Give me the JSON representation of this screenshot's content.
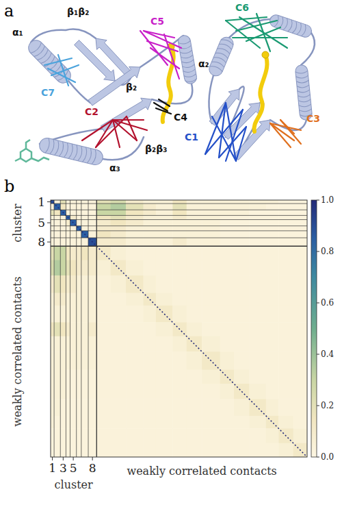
{
  "panel_a": {
    "letter": "a",
    "structure_labels": [
      "α₁",
      "β₁β₂",
      "α₂",
      "β₂",
      "β₂β₃",
      "α₃"
    ],
    "clusters": [
      {
        "label": "C1",
        "color": "#2450c8"
      },
      {
        "label": "C2",
        "color": "#b3122e"
      },
      {
        "label": "C3",
        "color": "#e0701e"
      },
      {
        "label": "C4",
        "color": "#111111"
      },
      {
        "label": "C5",
        "color": "#c81fc8"
      },
      {
        "label": "C6",
        "color": "#1a9a72"
      },
      {
        "label": "C7",
        "color": "#4aa3dc"
      }
    ]
  },
  "chart_data": {
    "type": "heatmap",
    "panel_label": "b",
    "segment_sizes": [
      5,
      9,
      8,
      6,
      9,
      7,
      10,
      12,
      20,
      22,
      25,
      18,
      24,
      20,
      22,
      26,
      20,
      22,
      24,
      18,
      21,
      20
    ],
    "group_sizes": [
      8,
      14
    ],
    "x_labels": [
      "1",
      null,
      "3",
      null,
      "5",
      null,
      null,
      "8",
      null,
      null,
      null,
      null,
      null,
      null,
      null,
      null,
      null,
      null,
      null,
      null,
      null,
      null
    ],
    "y_labels": [
      "1",
      null,
      null,
      null,
      "5",
      null,
      null,
      "8",
      null,
      null,
      null,
      null,
      null,
      null,
      null,
      null,
      null,
      null,
      null,
      null,
      null,
      null
    ],
    "x_axis_titles": [
      "cluster",
      "weakly correlated contacts"
    ],
    "y_axis_titles": [
      "cluster",
      "weakly correlated contacts"
    ],
    "values": [
      [
        0.9,
        0.04,
        0.2,
        0.04,
        0.04,
        0.04,
        0.04,
        0.04,
        0.2,
        0.25,
        0.1,
        0.05,
        0.05,
        0.15,
        0.05,
        0.05,
        0.05,
        0.05,
        0.05,
        0.05,
        0.03,
        0.03
      ],
      [
        0.04,
        0.85,
        0.15,
        0.04,
        0.04,
        0.04,
        0.04,
        0.04,
        0.3,
        0.35,
        0.2,
        0.1,
        0.05,
        0.2,
        0.05,
        0.05,
        0.05,
        0.05,
        0.05,
        0.03,
        0.03,
        0.03
      ],
      [
        0.2,
        0.15,
        0.85,
        0.04,
        0.04,
        0.04,
        0.04,
        0.04,
        0.3,
        0.3,
        0.15,
        0.1,
        0.05,
        0.15,
        0.05,
        0.05,
        0.05,
        0.05,
        0.03,
        0.03,
        0.03,
        0.03
      ],
      [
        0.04,
        0.04,
        0.04,
        0.85,
        0.1,
        0.04,
        0.04,
        0.04,
        0.15,
        0.2,
        0.1,
        0.05,
        0.05,
        0.1,
        0.05,
        0.05,
        0.03,
        0.03,
        0.03,
        0.03,
        0.03,
        0.03
      ],
      [
        0.04,
        0.04,
        0.04,
        0.1,
        0.85,
        0.04,
        0.04,
        0.04,
        0.1,
        0.15,
        0.1,
        0.05,
        0.05,
        0.05,
        0.05,
        0.05,
        0.03,
        0.03,
        0.03,
        0.03,
        0.03,
        0.03
      ],
      [
        0.04,
        0.04,
        0.04,
        0.04,
        0.04,
        0.85,
        0.04,
        0.04,
        0.1,
        0.1,
        0.05,
        0.05,
        0.05,
        0.05,
        0.05,
        0.05,
        0.03,
        0.03,
        0.03,
        0.03,
        0.03,
        0.03
      ],
      [
        0.04,
        0.04,
        0.04,
        0.04,
        0.04,
        0.04,
        0.85,
        0.04,
        0.15,
        0.1,
        0.05,
        0.05,
        0.05,
        0.05,
        0.05,
        0.05,
        0.03,
        0.03,
        0.03,
        0.03,
        0.03,
        0.03
      ],
      [
        0.04,
        0.04,
        0.04,
        0.04,
        0.04,
        0.04,
        0.04,
        0.9,
        0.1,
        0.1,
        0.05,
        0.05,
        0.05,
        0.1,
        0.05,
        0.05,
        0.03,
        0.03,
        0.03,
        0.03,
        0.03,
        0.03
      ],
      [
        0.2,
        0.3,
        0.3,
        0.15,
        0.1,
        0.1,
        0.15,
        0.1,
        0.12,
        0.06,
        0.04,
        0.04,
        0.04,
        0.04,
        0.04,
        0.04,
        0.04,
        0.04,
        0.04,
        0.04,
        0.04,
        0.04
      ],
      [
        0.25,
        0.35,
        0.3,
        0.2,
        0.15,
        0.1,
        0.1,
        0.1,
        0.06,
        0.12,
        0.06,
        0.04,
        0.04,
        0.04,
        0.04,
        0.04,
        0.04,
        0.04,
        0.04,
        0.04,
        0.04,
        0.04
      ],
      [
        0.1,
        0.2,
        0.15,
        0.1,
        0.1,
        0.05,
        0.05,
        0.05,
        0.04,
        0.06,
        0.12,
        0.06,
        0.04,
        0.04,
        0.04,
        0.04,
        0.04,
        0.04,
        0.04,
        0.04,
        0.04,
        0.04
      ],
      [
        0.05,
        0.1,
        0.1,
        0.05,
        0.05,
        0.05,
        0.05,
        0.05,
        0.04,
        0.04,
        0.06,
        0.12,
        0.06,
        0.04,
        0.04,
        0.04,
        0.04,
        0.04,
        0.04,
        0.04,
        0.04,
        0.04
      ],
      [
        0.05,
        0.05,
        0.05,
        0.05,
        0.05,
        0.05,
        0.05,
        0.05,
        0.04,
        0.04,
        0.04,
        0.06,
        0.12,
        0.06,
        0.04,
        0.04,
        0.04,
        0.04,
        0.04,
        0.04,
        0.04,
        0.04
      ],
      [
        0.15,
        0.2,
        0.15,
        0.1,
        0.05,
        0.05,
        0.05,
        0.1,
        0.04,
        0.04,
        0.04,
        0.04,
        0.06,
        0.12,
        0.06,
        0.04,
        0.04,
        0.04,
        0.04,
        0.04,
        0.04,
        0.04
      ],
      [
        0.05,
        0.05,
        0.05,
        0.05,
        0.05,
        0.05,
        0.05,
        0.05,
        0.04,
        0.04,
        0.04,
        0.04,
        0.04,
        0.06,
        0.12,
        0.06,
        0.04,
        0.04,
        0.04,
        0.04,
        0.04,
        0.04
      ],
      [
        0.05,
        0.05,
        0.05,
        0.05,
        0.05,
        0.05,
        0.05,
        0.05,
        0.04,
        0.04,
        0.04,
        0.04,
        0.04,
        0.04,
        0.06,
        0.12,
        0.06,
        0.04,
        0.04,
        0.04,
        0.04,
        0.04
      ],
      [
        0.05,
        0.05,
        0.05,
        0.03,
        0.03,
        0.03,
        0.03,
        0.03,
        0.04,
        0.04,
        0.04,
        0.04,
        0.04,
        0.04,
        0.04,
        0.06,
        0.12,
        0.06,
        0.04,
        0.04,
        0.04,
        0.04
      ],
      [
        0.05,
        0.05,
        0.05,
        0.03,
        0.03,
        0.03,
        0.03,
        0.03,
        0.04,
        0.04,
        0.04,
        0.04,
        0.04,
        0.04,
        0.04,
        0.04,
        0.06,
        0.12,
        0.06,
        0.04,
        0.04,
        0.04
      ],
      [
        0.05,
        0.05,
        0.03,
        0.03,
        0.03,
        0.03,
        0.03,
        0.03,
        0.04,
        0.04,
        0.04,
        0.04,
        0.04,
        0.04,
        0.04,
        0.04,
        0.04,
        0.06,
        0.12,
        0.06,
        0.04,
        0.04
      ],
      [
        0.05,
        0.03,
        0.03,
        0.03,
        0.03,
        0.03,
        0.03,
        0.03,
        0.04,
        0.04,
        0.04,
        0.04,
        0.04,
        0.04,
        0.04,
        0.04,
        0.04,
        0.04,
        0.06,
        0.12,
        0.06,
        0.04
      ],
      [
        0.03,
        0.03,
        0.03,
        0.03,
        0.03,
        0.03,
        0.03,
        0.03,
        0.04,
        0.04,
        0.04,
        0.04,
        0.04,
        0.04,
        0.04,
        0.04,
        0.04,
        0.04,
        0.04,
        0.06,
        0.12,
        0.06
      ],
      [
        0.03,
        0.03,
        0.03,
        0.03,
        0.03,
        0.03,
        0.03,
        0.03,
        0.04,
        0.04,
        0.04,
        0.04,
        0.04,
        0.04,
        0.04,
        0.04,
        0.04,
        0.04,
        0.04,
        0.04,
        0.06,
        0.12
      ]
    ],
    "diagonal_value": 1,
    "color_range": [
      0,
      1
    ],
    "color_ticks": [
      {
        "value": 0,
        "label": "0.0"
      },
      0.2,
      0.4,
      0.6,
      0.8,
      {
        "value": 1,
        "label": "1.0"
      }
    ]
  }
}
